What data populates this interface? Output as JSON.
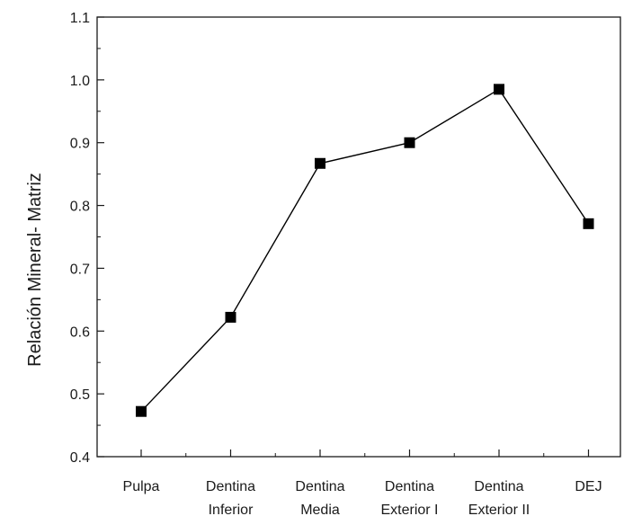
{
  "chart_data": {
    "type": "line",
    "title": "",
    "xlabel": "",
    "ylabel": "Relación Mineral- Matriz",
    "categories": [
      [
        "Pulpa"
      ],
      [
        "Dentina",
        "Inferior"
      ],
      [
        "Dentina",
        "Media"
      ],
      [
        "Dentina",
        "Exterior I"
      ],
      [
        "Dentina",
        "Exterior II"
      ],
      [
        "DEJ"
      ]
    ],
    "series": [
      {
        "values": [
          0.472,
          0.622,
          0.867,
          0.9,
          0.985,
          0.771
        ],
        "marker": "square",
        "color": "#000000"
      }
    ],
    "ylim": [
      0.4,
      1.1
    ],
    "yticks": [
      0.4,
      0.5,
      0.6,
      0.7,
      0.8,
      0.9,
      1.0,
      1.1
    ],
    "ytick_labels": [
      "0.4",
      "0.5",
      "0.6",
      "0.7",
      "0.8",
      "0.9",
      "1.0",
      "1.1"
    ],
    "grid": false,
    "legend": "none"
  }
}
